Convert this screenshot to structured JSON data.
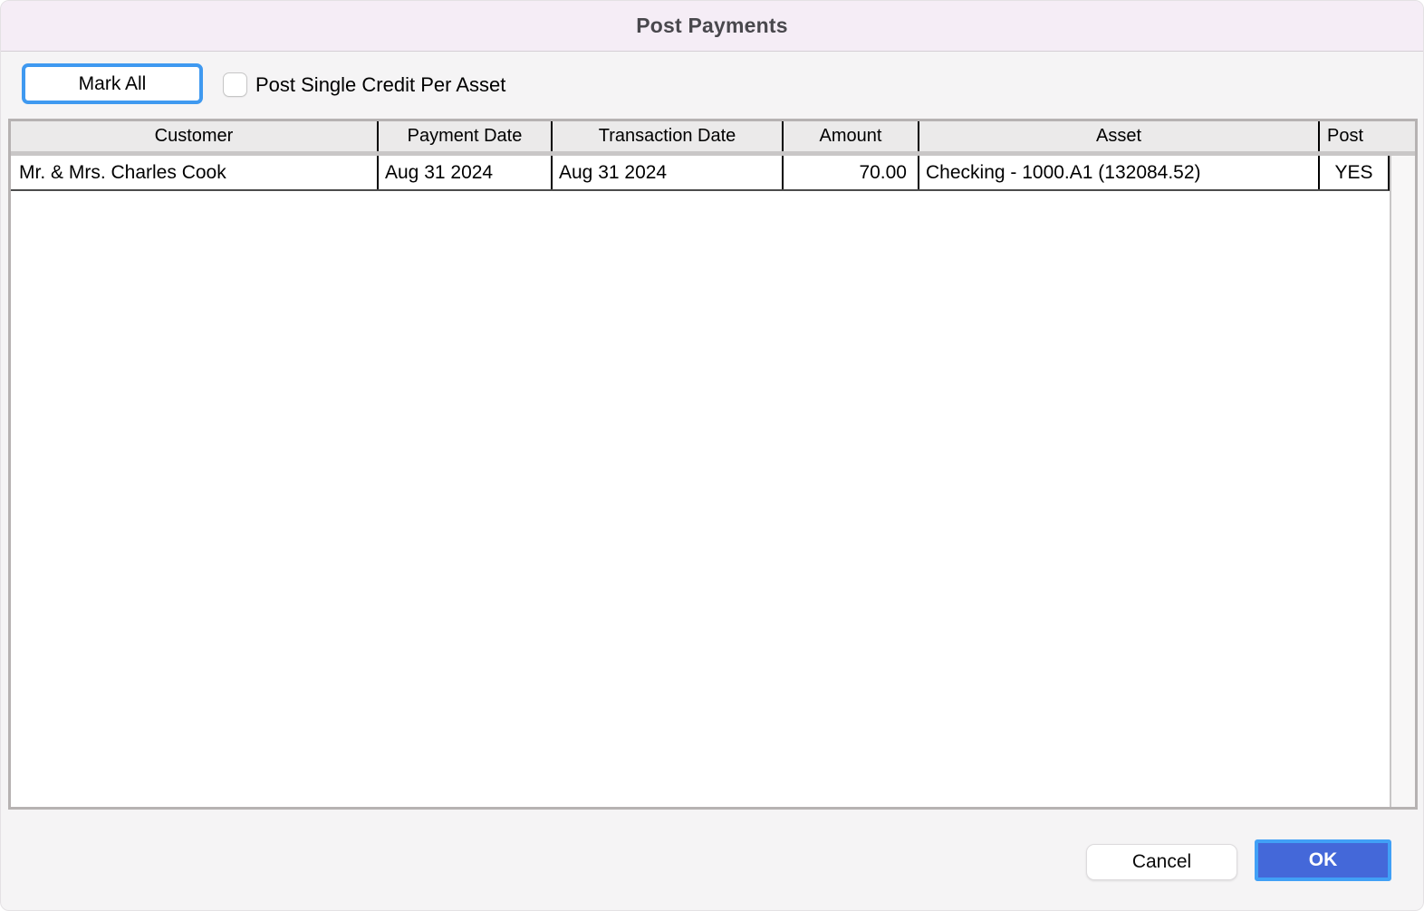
{
  "window": {
    "title": "Post Payments"
  },
  "toolbar": {
    "mark_all_label": "Mark All",
    "checkbox_label": "Post Single Credit Per Asset",
    "checkbox_checked": false
  },
  "table": {
    "columns": [
      {
        "label": "Customer"
      },
      {
        "label": "Payment Date"
      },
      {
        "label": "Transaction Date"
      },
      {
        "label": "Amount"
      },
      {
        "label": "Asset"
      },
      {
        "label": "Post"
      }
    ],
    "rows": [
      {
        "customer": "Mr. & Mrs. Charles Cook",
        "payment_date": "Aug 31 2024",
        "transaction_date": "Aug 31 2024",
        "amount": "70.00",
        "asset": "Checking - 1000.A1 (132084.52)",
        "post": "YES"
      }
    ]
  },
  "footer": {
    "cancel_label": "Cancel",
    "ok_label": "OK"
  },
  "colors": {
    "focus_ring_blue": "#3f99f0",
    "ok_button_fill": "#4468d9",
    "titlebar_bg": "#f5edf6",
    "body_bg": "#f5f4f5"
  }
}
